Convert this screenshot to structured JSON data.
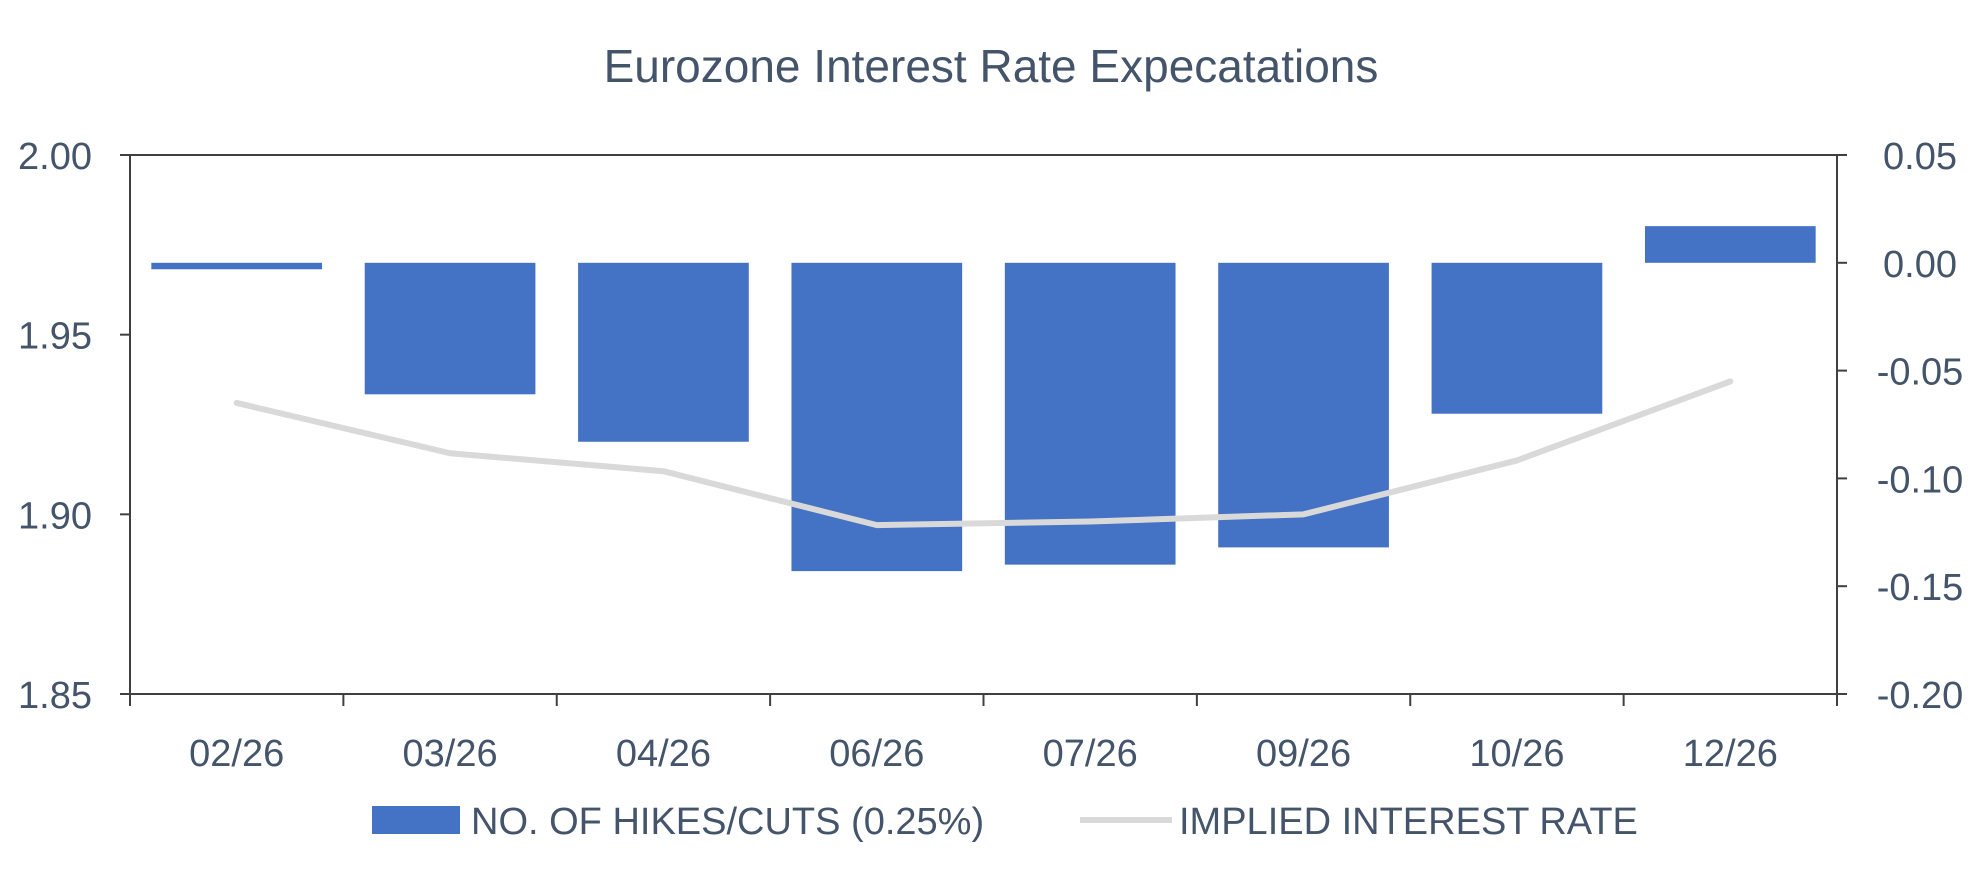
{
  "chart_data": {
    "type": "bar",
    "title": "Eurozone Interest Rate Expecatations",
    "categories": [
      "02/26",
      "03/26",
      "04/26",
      "06/26",
      "07/26",
      "09/26",
      "10/26",
      "12/26"
    ],
    "series": [
      {
        "name": "NO. OF HIKES/CUTS (0.25%)",
        "type": "bar",
        "axis": "right",
        "color": "#4472c4",
        "values": [
          -0.003,
          -0.061,
          -0.083,
          -0.143,
          -0.14,
          -0.132,
          -0.07,
          0.017
        ]
      },
      {
        "name": "IMPLIED INTEREST RATE",
        "type": "line",
        "axis": "left",
        "color": "#d9d9d9",
        "values": [
          1.931,
          1.917,
          1.912,
          1.897,
          1.898,
          1.9,
          1.915,
          1.937
        ]
      }
    ],
    "y_left": {
      "ylim": [
        1.85,
        2.0
      ],
      "ticks": [
        "2.00",
        "1.95",
        "1.90",
        "1.85"
      ],
      "tick_values": [
        2.0,
        1.95,
        1.9,
        1.85
      ]
    },
    "y_right": {
      "ylim": [
        -0.2,
        0.05
      ],
      "ticks": [
        "0.05",
        "0.00",
        "-0.05",
        "-0.10",
        "-0.15",
        "-0.20"
      ],
      "tick_values": [
        0.05,
        0.0,
        -0.05,
        -0.1,
        -0.15,
        -0.2
      ]
    },
    "legend_position": "bottom-center",
    "grid": false
  }
}
